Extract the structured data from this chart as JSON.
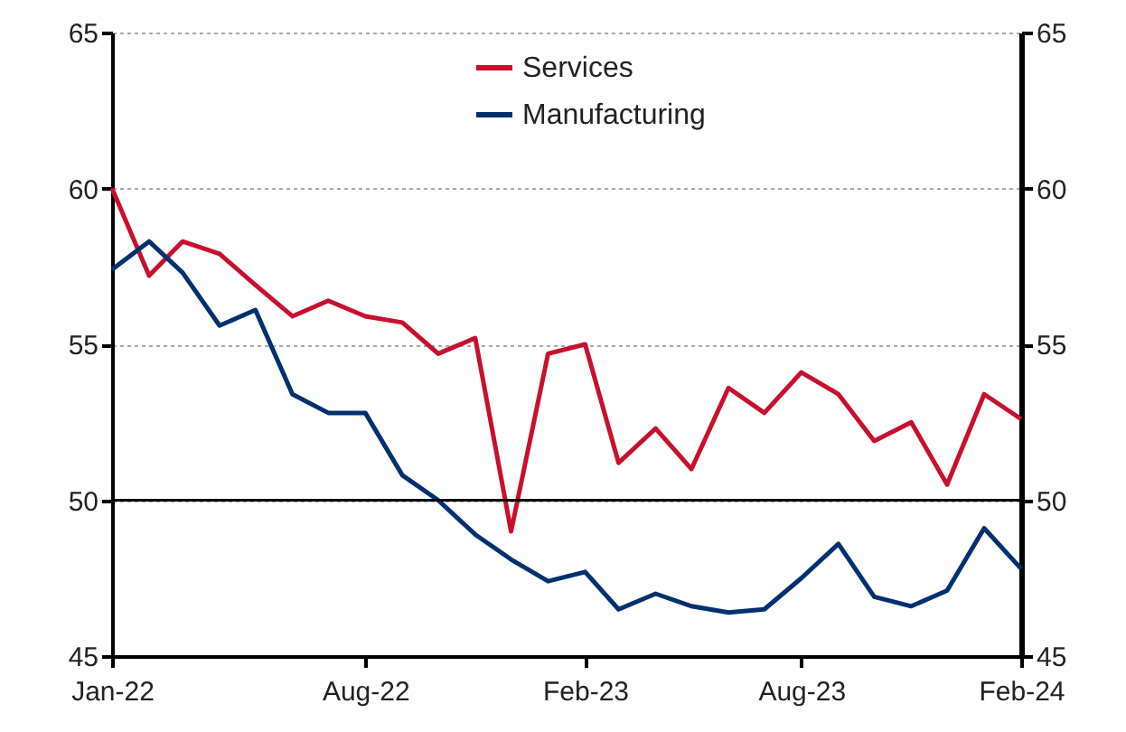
{
  "chart_data": {
    "type": "line",
    "x": [
      "2022-01",
      "2022-02",
      "2022-03",
      "2022-04",
      "2022-05",
      "2022-06",
      "2022-07",
      "2022-08",
      "2022-09",
      "2022-10",
      "2022-11",
      "2022-12",
      "2023-01",
      "2023-02",
      "2023-03",
      "2023-04",
      "2023-05",
      "2023-06",
      "2023-07",
      "2023-08",
      "2023-09",
      "2023-10",
      "2023-11",
      "2023-12",
      "2024-01",
      "2024-02"
    ],
    "series": [
      {
        "name": "Services",
        "color": "#c8102e",
        "values": [
          60.0,
          57.2,
          58.3,
          57.9,
          56.9,
          55.9,
          56.4,
          55.9,
          55.7,
          54.7,
          55.2,
          49.0,
          54.7,
          55.0,
          51.2,
          52.3,
          51.0,
          53.6,
          52.8,
          54.1,
          53.4,
          51.9,
          52.5,
          50.5,
          53.4,
          52.6
        ]
      },
      {
        "name": "Manufacturing",
        "color": "#00306e",
        "values": [
          57.4,
          58.3,
          57.3,
          55.6,
          56.1,
          53.4,
          52.8,
          52.8,
          50.8,
          50.0,
          48.9,
          48.1,
          47.4,
          47.7,
          46.5,
          47.0,
          46.6,
          46.4,
          46.5,
          47.5,
          48.6,
          46.9,
          46.6,
          47.1,
          49.1,
          47.8
        ]
      }
    ],
    "xlim": [
      "2022-01",
      "2024-02"
    ],
    "xticks": [
      {
        "value": "2022-01",
        "label": "Jan-22"
      },
      {
        "value": "2022-08",
        "label": "Aug-22"
      },
      {
        "value": "2023-02",
        "label": "Feb-23"
      },
      {
        "value": "2023-08",
        "label": "Aug-23"
      },
      {
        "value": "2024-02",
        "label": "Feb-24"
      }
    ],
    "ylim": [
      45,
      65
    ],
    "yticks": [
      45,
      50,
      55,
      60,
      65
    ],
    "y2lim": [
      45,
      65
    ],
    "y2ticks": [
      45,
      50,
      55,
      60,
      65
    ],
    "ref_lines": [
      {
        "axis": "y",
        "value": 50,
        "color": "#000000"
      }
    ],
    "grid": "y",
    "legend": "top",
    "line_style": "solid",
    "marker": "none"
  }
}
